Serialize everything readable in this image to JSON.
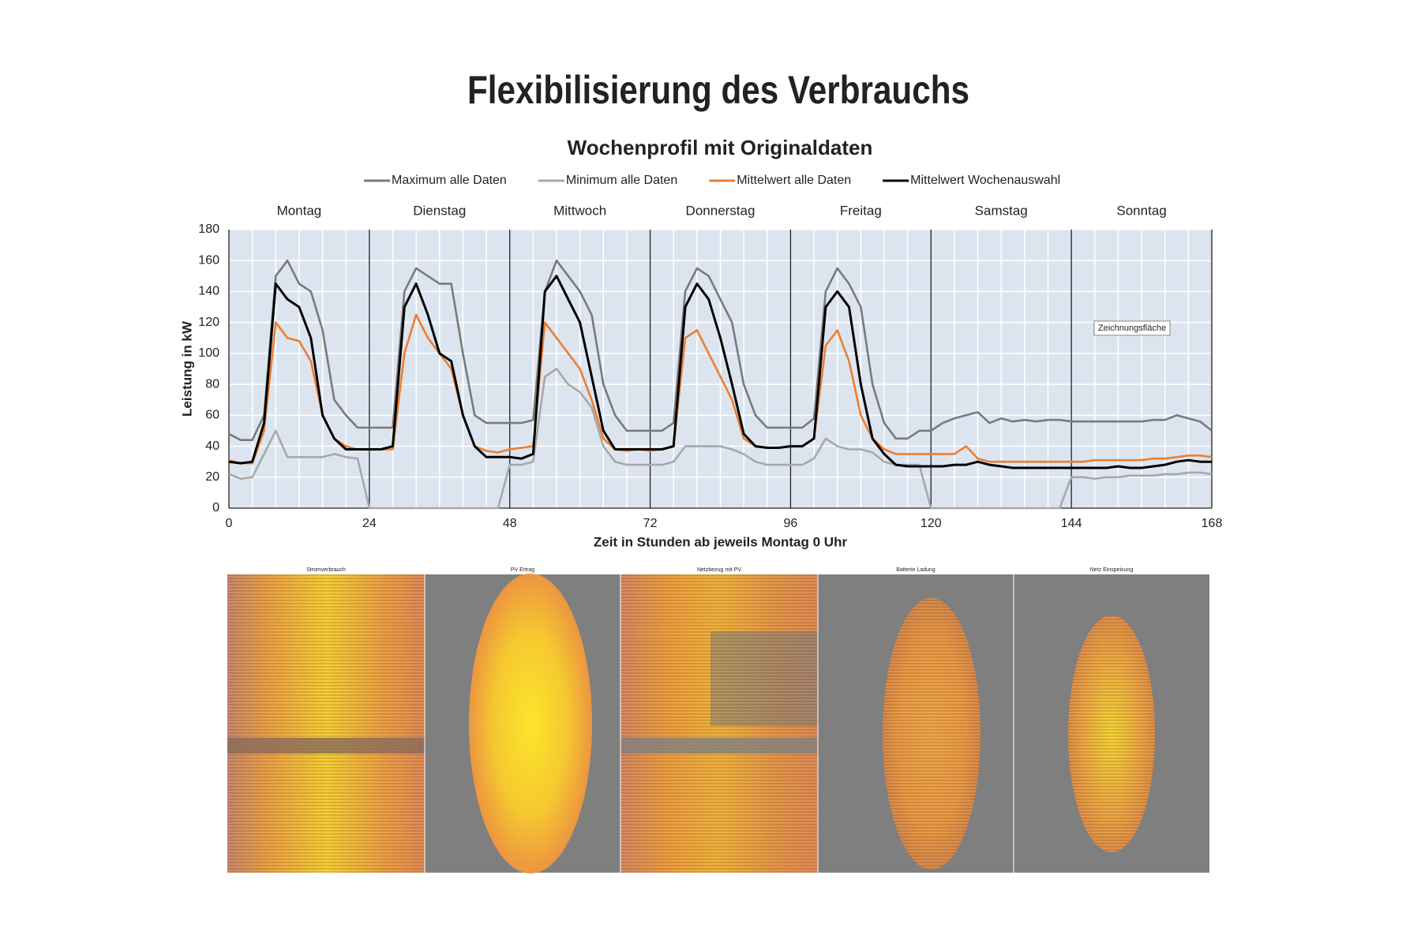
{
  "title": "Flexibilisierung des Verbrauchs",
  "chart_data": {
    "type": "line",
    "title": "Wochenprofil mit Originaldaten",
    "x_label": "Zeit in Stunden ab jeweils Montag 0 Uhr",
    "y_label": "Leistung in kW",
    "day_labels": [
      "Montag",
      "Dienstag",
      "Mittwoch",
      "Donnerstag",
      "Freitag",
      "Samstag",
      "Sonntag"
    ],
    "annotation": "Zeichnungsfläche",
    "legend": "top",
    "grid": true,
    "background": "#dce5ef",
    "xlim": [
      0,
      168
    ],
    "xticks": [
      0,
      24,
      48,
      72,
      96,
      120,
      144,
      168
    ],
    "ylim": [
      0,
      180
    ],
    "yticks": [
      0,
      20,
      40,
      60,
      80,
      100,
      120,
      140,
      160,
      180
    ],
    "x": [
      0,
      2,
      4,
      6,
      8,
      10,
      12,
      14,
      16,
      18,
      20,
      22,
      24,
      26,
      28,
      30,
      32,
      34,
      36,
      38,
      40,
      42,
      44,
      46,
      48,
      50,
      52,
      54,
      56,
      58,
      60,
      62,
      64,
      66,
      68,
      70,
      72,
      74,
      76,
      78,
      80,
      82,
      84,
      86,
      88,
      90,
      92,
      94,
      96,
      98,
      100,
      102,
      104,
      106,
      108,
      110,
      112,
      114,
      116,
      118,
      120,
      122,
      124,
      126,
      128,
      130,
      132,
      134,
      136,
      138,
      140,
      142,
      144,
      146,
      148,
      150,
      152,
      154,
      156,
      158,
      160,
      162,
      164,
      166,
      168
    ],
    "series": [
      {
        "name": "Maximum alle Daten",
        "color": "#7a7a7a",
        "values": [
          48,
          44,
          44,
          60,
          150,
          160,
          145,
          140,
          115,
          70,
          60,
          52,
          52,
          52,
          52,
          140,
          155,
          150,
          145,
          145,
          100,
          60,
          55,
          55,
          55,
          55,
          57,
          140,
          160,
          150,
          140,
          125,
          80,
          60,
          50,
          50,
          50,
          50,
          55,
          140,
          155,
          150,
          135,
          120,
          80,
          60,
          52,
          52,
          52,
          52,
          58,
          140,
          155,
          145,
          130,
          80,
          55,
          45,
          45,
          50,
          50,
          55,
          58,
          60,
          62,
          55,
          58,
          56,
          57,
          56,
          57,
          57,
          56,
          56,
          56,
          56,
          56,
          56,
          56,
          57,
          57,
          60,
          58,
          56,
          50
        ]
      },
      {
        "name": "Minimum alle Daten",
        "color": "#a8a8a8",
        "values": [
          22,
          19,
          20,
          35,
          50,
          33,
          33,
          33,
          33,
          35,
          33,
          32,
          0,
          0,
          0,
          0,
          0,
          0,
          0,
          0,
          0,
          0,
          0,
          0,
          28,
          28,
          30,
          85,
          90,
          80,
          75,
          65,
          40,
          30,
          28,
          28,
          28,
          28,
          30,
          40,
          40,
          40,
          40,
          38,
          35,
          30,
          28,
          28,
          28,
          28,
          32,
          45,
          40,
          38,
          38,
          36,
          30,
          28,
          28,
          28,
          0,
          0,
          0,
          0,
          0,
          0,
          0,
          0,
          0,
          0,
          0,
          0,
          20,
          20,
          19,
          20,
          20,
          21,
          21,
          21,
          22,
          22,
          23,
          23,
          22
        ]
      },
      {
        "name": "Mittelwert alle Daten",
        "color": "#ed7d31",
        "values": [
          31,
          29,
          29,
          50,
          120,
          110,
          108,
          95,
          60,
          45,
          40,
          38,
          38,
          38,
          38,
          100,
          125,
          110,
          100,
          90,
          60,
          40,
          37,
          36,
          38,
          39,
          40,
          120,
          110,
          100,
          90,
          70,
          45,
          38,
          37,
          38,
          37,
          38,
          40,
          110,
          115,
          100,
          85,
          70,
          45,
          40,
          39,
          39,
          40,
          40,
          45,
          105,
          115,
          95,
          60,
          45,
          38,
          35,
          35,
          35,
          35,
          35,
          35,
          40,
          32,
          30,
          30,
          30,
          30,
          30,
          30,
          30,
          30,
          30,
          31,
          31,
          31,
          31,
          31,
          32,
          32,
          33,
          34,
          34,
          33
        ]
      },
      {
        "name": "Mittelwert Wochenauswahl",
        "color": "#000000",
        "values": [
          30,
          29,
          30,
          55,
          145,
          135,
          130,
          110,
          60,
          45,
          38,
          38,
          38,
          38,
          40,
          130,
          145,
          125,
          100,
          95,
          60,
          40,
          33,
          33,
          33,
          32,
          35,
          140,
          150,
          135,
          120,
          85,
          50,
          38,
          38,
          38,
          38,
          38,
          40,
          130,
          145,
          135,
          110,
          80,
          48,
          40,
          39,
          39,
          40,
          40,
          45,
          130,
          140,
          130,
          80,
          45,
          35,
          28,
          27,
          27,
          27,
          27,
          28,
          28,
          30,
          28,
          27,
          26,
          26,
          26,
          26,
          26,
          26,
          26,
          26,
          26,
          27,
          26,
          26,
          27,
          28,
          30,
          31,
          30,
          30
        ]
      }
    ]
  },
  "heatmap_panels": [
    {
      "title": "Stromverbrauch"
    },
    {
      "title": "PV Ertrag"
    },
    {
      "title": "Netzbezug mit PV"
    },
    {
      "title": "Batterie Ladung"
    },
    {
      "title": "Netz Einspeisung"
    }
  ]
}
